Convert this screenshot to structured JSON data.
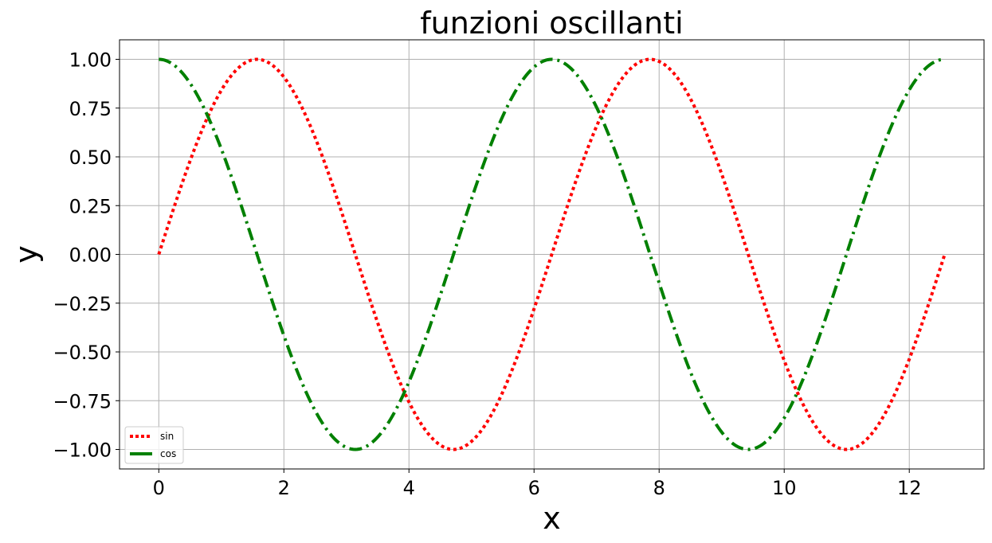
{
  "chart_data": {
    "type": "line",
    "title": "funzioni oscillanti",
    "xlabel": "x",
    "ylabel": "y",
    "xlim": [
      -0.628,
      13.195
    ],
    "ylim": [
      -1.1,
      1.1
    ],
    "xticks": [
      0,
      2,
      4,
      6,
      8,
      10,
      12
    ],
    "xtick_labels": [
      "0",
      "2",
      "4",
      "6",
      "8",
      "10",
      "12"
    ],
    "yticks": [
      1.0,
      0.75,
      0.5,
      0.25,
      0.0,
      -0.25,
      -0.5,
      -0.75,
      -1.0
    ],
    "ytick_labels": [
      "1.00",
      "0.75",
      "0.50",
      "0.25",
      "0.00",
      "−0.25",
      "−0.50",
      "−0.75",
      "−1.00"
    ],
    "grid": true,
    "legend_position": "lower-left",
    "x": [
      0,
      0.5,
      1,
      1.5,
      2,
      2.5,
      3,
      3.5,
      4,
      4.5,
      5,
      5.5,
      6,
      6.5,
      7,
      7.5,
      8,
      8.5,
      9,
      9.5,
      10,
      10.5,
      11,
      11.5,
      12,
      12.566
    ],
    "series": [
      {
        "name": "sin",
        "color": "#ff0000",
        "style": "dotted",
        "values": [
          0.0,
          0.479,
          0.841,
          0.997,
          0.909,
          0.598,
          0.141,
          -0.351,
          -0.757,
          -0.978,
          -0.959,
          -0.706,
          -0.279,
          0.215,
          0.657,
          0.938,
          0.989,
          0.798,
          0.412,
          -0.075,
          -0.544,
          -0.88,
          -1.0,
          -0.875,
          -0.537,
          0.0
        ]
      },
      {
        "name": "cos",
        "color": "#008000",
        "style": "dashdot",
        "values": [
          1.0,
          0.878,
          0.54,
          0.071,
          -0.416,
          -0.801,
          -0.99,
          -0.936,
          -0.654,
          -0.211,
          0.284,
          0.709,
          0.96,
          0.977,
          0.754,
          0.347,
          -0.146,
          -0.602,
          -0.911,
          -0.997,
          -0.839,
          -0.476,
          0.004,
          0.484,
          0.844,
          1.0
        ]
      }
    ]
  }
}
